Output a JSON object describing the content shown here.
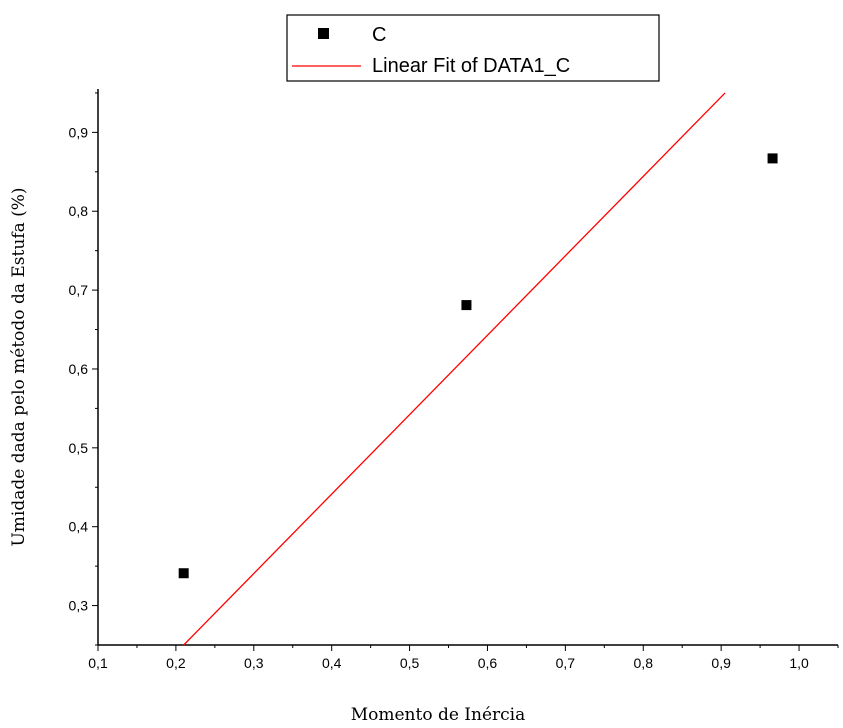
{
  "chart_data": {
    "type": "scatter",
    "xlabel": "Momento de Inércia",
    "ylabel": "Umidade dada pelo método da Estufa (%)",
    "xlim": [
      0.1,
      1.05
    ],
    "ylim": [
      0.25,
      0.955
    ],
    "x_ticks": [
      "0,1",
      "0,2",
      "0,3",
      "0,4",
      "0,5",
      "0,6",
      "0,7",
      "0,8",
      "0,9",
      "1,0"
    ],
    "y_ticks": [
      "0,3",
      "0,4",
      "0,5",
      "0,6",
      "0,7",
      "0,8",
      "0,9"
    ],
    "x_tick_values": [
      0.1,
      0.2,
      0.3,
      0.4,
      0.5,
      0.6,
      0.7,
      0.8,
      0.9,
      1.0
    ],
    "y_tick_values": [
      0.3,
      0.4,
      0.5,
      0.6,
      0.7,
      0.8,
      0.9
    ],
    "series": [
      {
        "name": "C",
        "type": "scatter",
        "color": "#000000",
        "marker": "square",
        "x": [
          0.21,
          0.573,
          0.966
        ],
        "y": [
          0.341,
          0.681,
          0.867
        ]
      },
      {
        "name": "Linear Fit of DATA1_C",
        "type": "line",
        "color": "#ff0000",
        "x": [
          0.21,
          0.905
        ],
        "y": [
          0.25,
          0.95
        ]
      }
    ],
    "legend_position": "top-center",
    "grid": false
  }
}
